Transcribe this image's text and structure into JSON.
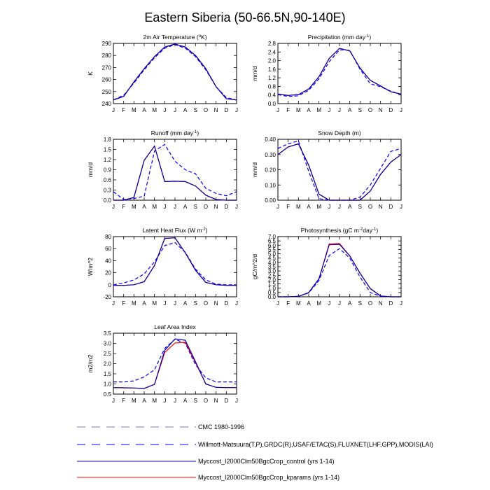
{
  "figure": {
    "title": "Eastern Siberia (50-66.5N,90-140E)"
  },
  "legend": [
    {
      "label": "CMC 1980-1996",
      "color": "#7777bb",
      "style": "dash-long"
    },
    {
      "label": "Willmott-Matsuura(T,P),GRDC(R),USAF/ETAC(S),FLUXNET(LHF,GPP),MODIS(LAI)",
      "color": "#0000ff",
      "style": "dash"
    },
    {
      "label": "Myccost_I2000Clm50BgcCrop_control (yrs 1-14)",
      "color": "#0000aa",
      "style": "solid"
    },
    {
      "label": "Myccost_I2000Clm50BgcCrop_kparams (yrs 1-14)",
      "color": "#ff0000",
      "style": "solid"
    }
  ],
  "chart_data": [
    {
      "type": "line",
      "title": "2m Air Temperature (°K)",
      "ylabel": "K",
      "ylim": [
        240,
        290
      ],
      "yticks": [
        240,
        250,
        260,
        270,
        280,
        290
      ],
      "ytick_labels": [
        "240",
        "250",
        "260",
        "270",
        "280",
        "290"
      ],
      "categories": [
        "J",
        "F",
        "M",
        "A",
        "M",
        "J",
        "J",
        "A",
        "S",
        "O",
        "N",
        "D",
        "J"
      ],
      "series": [
        {
          "values": [
            243,
            247,
            257,
            268,
            278,
            286,
            289,
            286,
            279,
            268,
            254,
            245,
            243
          ],
          "color": "#0000ff",
          "dash": "5,3"
        },
        {
          "values": [
            243,
            246,
            258,
            269,
            279,
            287,
            289.5,
            287,
            280,
            269,
            254,
            244,
            243
          ],
          "color": "#ff0000",
          "dash": ""
        },
        {
          "values": [
            243,
            246,
            258,
            269,
            279,
            287,
            289.5,
            287,
            280,
            269,
            254,
            244,
            243
          ],
          "color": "#0000aa",
          "dash": ""
        }
      ]
    },
    {
      "type": "line",
      "title": "Precipitation (mm day-1)",
      "ylabel": "mm/d",
      "ylim": [
        0,
        2.8
      ],
      "yticks": [
        0,
        0.4,
        0.8,
        1.2,
        1.6,
        2.0,
        2.4,
        2.8
      ],
      "ytick_labels": [
        "0.0",
        "0.4",
        "0.8",
        "1.2",
        "1.6",
        "2.0",
        "2.4",
        "2.8"
      ],
      "categories": [
        "J",
        "F",
        "M",
        "A",
        "M",
        "J",
        "J",
        "A",
        "S",
        "O",
        "N",
        "D",
        "J"
      ],
      "series": [
        {
          "values": [
            0.42,
            0.33,
            0.36,
            0.62,
            1.15,
            1.95,
            2.5,
            2.48,
            1.6,
            0.92,
            0.78,
            0.58,
            0.42
          ],
          "color": "#0000ff",
          "dash": "5,3"
        },
        {
          "values": [
            0.44,
            0.38,
            0.42,
            0.68,
            1.25,
            2.1,
            2.57,
            2.45,
            1.65,
            1.08,
            0.82,
            0.55,
            0.44
          ],
          "color": "#ff0000",
          "dash": ""
        },
        {
          "values": [
            0.44,
            0.38,
            0.42,
            0.68,
            1.25,
            2.1,
            2.57,
            2.45,
            1.65,
            1.08,
            0.82,
            0.55,
            0.44
          ],
          "color": "#0000aa",
          "dash": ""
        }
      ]
    },
    {
      "type": "line",
      "title": "Runoff (mm day-1)",
      "ylabel": "mm/d",
      "ylim": [
        0,
        1.8
      ],
      "yticks": [
        0,
        0.3,
        0.6,
        0.9,
        1.2,
        1.5,
        1.8
      ],
      "ytick_labels": [
        "0.0",
        "0.3",
        "0.6",
        "0.9",
        "1.2",
        "1.5",
        "1.8"
      ],
      "categories": [
        "J",
        "F",
        "M",
        "A",
        "M",
        "J",
        "J",
        "A",
        "S",
        "O",
        "N",
        "D",
        "J"
      ],
      "series": [
        {
          "values": [
            0.25,
            0.02,
            0.05,
            0.12,
            1.45,
            1.65,
            1.15,
            0.9,
            0.78,
            0.35,
            0.2,
            0.13,
            0.25
          ],
          "color": "#0000ff",
          "dash": "5,3"
        },
        {
          "values": [
            0.0,
            0.0,
            0.08,
            1.18,
            1.6,
            0.55,
            0.56,
            0.55,
            0.42,
            0.15,
            0.02,
            0.0,
            0.0
          ],
          "color": "#ff0000",
          "dash": ""
        },
        {
          "values": [
            0.0,
            0.0,
            0.08,
            1.18,
            1.6,
            0.55,
            0.56,
            0.55,
            0.42,
            0.15,
            0.02,
            0.0,
            0.0
          ],
          "color": "#0000aa",
          "dash": ""
        }
      ]
    },
    {
      "type": "line",
      "title": "Snow Depth (m)",
      "ylabel": "mm/d",
      "ylim": [
        0,
        0.4
      ],
      "yticks": [
        0,
        0.1,
        0.2,
        0.3,
        0.4
      ],
      "ytick_labels": [
        "0.00",
        "0.10",
        "0.20",
        "0.30",
        "0.40"
      ],
      "categories": [
        "J",
        "F",
        "M",
        "A",
        "M",
        "J",
        "J",
        "A",
        "S",
        "O",
        "N",
        "D",
        "J"
      ],
      "series": [
        {
          "values": [
            0.34,
            0.37,
            0.39,
            0.19,
            0.01,
            0,
            0,
            0,
            0.02,
            0.1,
            0.21,
            0.32,
            0.34
          ],
          "color": "#0000ff",
          "dash": "5,3"
        },
        {
          "values": [
            0.3,
            0.35,
            0.37,
            0.23,
            0.04,
            0.0,
            0.0,
            0.0,
            0.0,
            0.06,
            0.17,
            0.25,
            0.3
          ],
          "color": "#ff0000",
          "dash": ""
        },
        {
          "values": [
            0.3,
            0.35,
            0.37,
            0.23,
            0.04,
            0.0,
            0.0,
            0.0,
            0.0,
            0.06,
            0.17,
            0.25,
            0.3
          ],
          "color": "#0000aa",
          "dash": ""
        }
      ]
    },
    {
      "type": "line",
      "title": "Latent Heat Flux (W m-2)",
      "ylabel": "W/m^2",
      "ylim": [
        -20,
        80
      ],
      "yticks": [
        -20,
        0,
        20,
        40,
        60,
        80
      ],
      "ytick_labels": [
        "-20",
        "0",
        "20",
        "40",
        "60",
        "80"
      ],
      "categories": [
        "J",
        "F",
        "M",
        "A",
        "M",
        "J",
        "J",
        "A",
        "S",
        "O",
        "N",
        "D",
        "J"
      ],
      "series": [
        {
          "values": [
            0,
            3,
            8,
            18,
            38,
            65,
            70,
            54,
            26,
            8,
            1,
            0,
            0
          ],
          "color": "#0000ff",
          "dash": "5,3"
        },
        {
          "values": [
            -1,
            -1,
            0,
            5,
            32,
            77,
            78,
            53,
            24,
            4,
            0,
            -1,
            -1
          ],
          "color": "#ff0000",
          "dash": ""
        },
        {
          "values": [
            -1,
            -1,
            0,
            5,
            32,
            77,
            78,
            53,
            24,
            4,
            0,
            -1,
            -1
          ],
          "color": "#0000aa",
          "dash": ""
        }
      ]
    },
    {
      "type": "line",
      "title": "Photosynthesis (gC m-2day-1)",
      "ylabel": "gC/m^2/d",
      "ylim": [
        0,
        7
      ],
      "yticks": [
        0,
        0.5,
        1,
        1.5,
        2,
        2.5,
        3,
        3.5,
        4,
        4.5,
        5,
        5.5,
        6,
        6.5,
        7
      ],
      "ytick_labels": [
        "0.0",
        "0.5",
        "1.0",
        "1.5",
        "2.0",
        "2.5",
        "3.0",
        "3.5",
        "4.0",
        "4.5",
        "5.0",
        "5.5",
        "6.0",
        "6.5",
        "7.0"
      ],
      "categories": [
        "J",
        "F",
        "M",
        "A",
        "M",
        "J",
        "J",
        "A",
        "S",
        "O",
        "N",
        "D",
        "J"
      ],
      "series": [
        {
          "values": [
            0,
            0,
            0.05,
            0.45,
            1.9,
            4.8,
            5.6,
            4.5,
            2.3,
            0.5,
            0.05,
            0,
            0
          ],
          "color": "#0000ff",
          "dash": "5,3"
        },
        {
          "values": [
            0,
            0,
            0.05,
            0.5,
            2.1,
            6.15,
            6.2,
            4.75,
            2.75,
            0.95,
            0.1,
            0,
            0
          ],
          "color": "#ff0000",
          "dash": ""
        },
        {
          "values": [
            0,
            0,
            0.05,
            0.5,
            2.1,
            6.05,
            6.1,
            4.75,
            2.75,
            0.95,
            0.1,
            0,
            0
          ],
          "color": "#0000aa",
          "dash": ""
        }
      ]
    },
    {
      "type": "line",
      "title": "Leaf Area Index",
      "ylabel": "m2/m2",
      "ylim": [
        0.5,
        3.5
      ],
      "yticks": [
        0.5,
        1.0,
        1.5,
        2.0,
        2.5,
        3.0,
        3.5
      ],
      "ytick_labels": [
        "0.5",
        "1.0",
        "1.5",
        "2.0",
        "2.5",
        "3.0",
        "3.5"
      ],
      "categories": [
        "J",
        "F",
        "M",
        "A",
        "M",
        "J",
        "J",
        "A",
        "S",
        "O",
        "N",
        "D",
        "J"
      ],
      "series": [
        {
          "values": [
            1.1,
            1.1,
            1.15,
            1.35,
            1.7,
            2.75,
            3.2,
            3.0,
            1.95,
            1.3,
            1.1,
            1.1,
            1.1
          ],
          "color": "#0000ff",
          "dash": "5,3"
        },
        {
          "values": [
            0.82,
            0.81,
            0.8,
            0.78,
            0.98,
            2.55,
            3.02,
            3.05,
            2.05,
            1.0,
            0.83,
            0.82,
            0.82
          ],
          "color": "#ff0000",
          "dash": ""
        },
        {
          "values": [
            0.82,
            0.81,
            0.8,
            0.78,
            0.98,
            2.65,
            3.22,
            3.15,
            2.1,
            1.0,
            0.83,
            0.82,
            0.82
          ],
          "color": "#0000aa",
          "dash": ""
        }
      ]
    }
  ]
}
